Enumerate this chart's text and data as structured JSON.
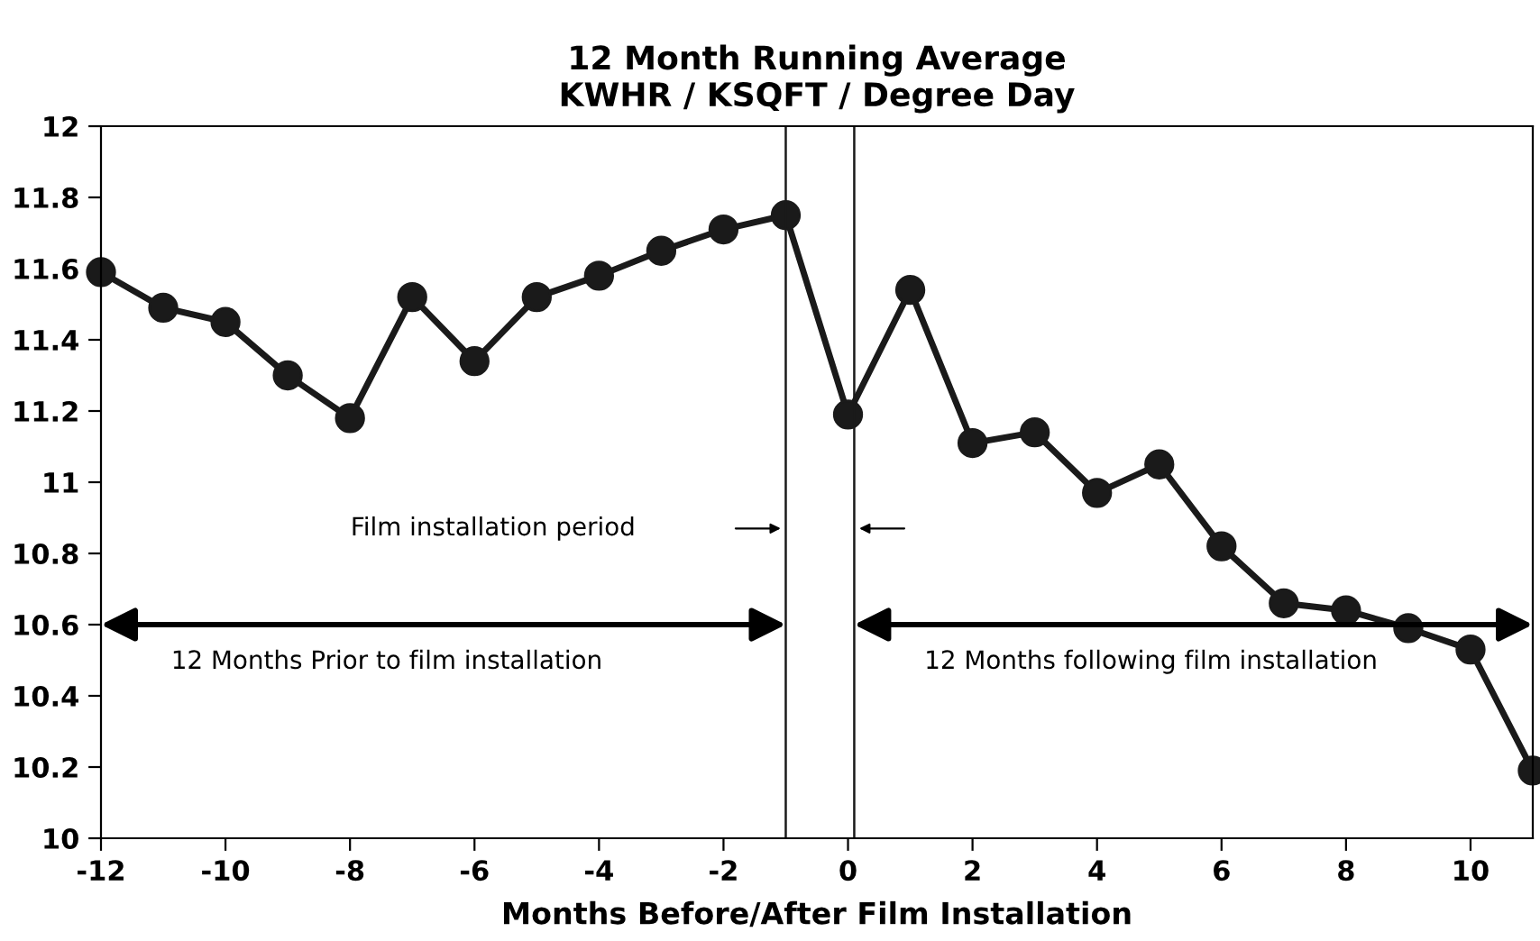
{
  "chart_data": {
    "type": "line",
    "title": "12 Month Running Average\nKWHR / KSQFT / Degree Day",
    "xlabel": "Months Before/After Film Installation",
    "x": [
      -12,
      -11,
      -10,
      -9,
      -8,
      -7,
      -6,
      -5,
      -4,
      -3,
      -2,
      -1,
      0,
      1,
      2,
      3,
      4,
      5,
      6,
      7,
      8,
      9,
      10,
      11
    ],
    "series": [
      {
        "color": "#1a1a1a",
        "values": [
          11.59,
          11.49,
          11.45,
          11.3,
          11.18,
          11.52,
          11.34,
          11.52,
          11.58,
          11.65,
          11.71,
          11.75,
          11.19,
          11.54,
          11.11,
          11.14,
          10.97,
          11.05,
          10.82,
          10.66,
          10.64,
          10.59,
          10.53,
          10.19
        ]
      }
    ],
    "marker": "circle",
    "line_style": "solid",
    "grid": false,
    "xlim": [
      -12,
      11
    ],
    "xticks": [
      -12,
      -10,
      -8,
      -6,
      -4,
      -2,
      0,
      2,
      4,
      6,
      8,
      10
    ],
    "ylim": [
      10,
      12
    ],
    "yticks": [
      10,
      10.2,
      10.4,
      10.6,
      10.8,
      11,
      11.2,
      11.4,
      11.6,
      11.8,
      12
    ],
    "ref_lines": [
      {
        "axis": "x",
        "value": -1,
        "label": null,
        "color": "#1a1a1a"
      },
      {
        "axis": "x",
        "value": 0.1,
        "label": null,
        "color": "#1a1a1a"
      }
    ],
    "annotations": [
      "Film installation period",
      "12 Months Prior to film installation",
      "12 Months following film installation"
    ]
  }
}
